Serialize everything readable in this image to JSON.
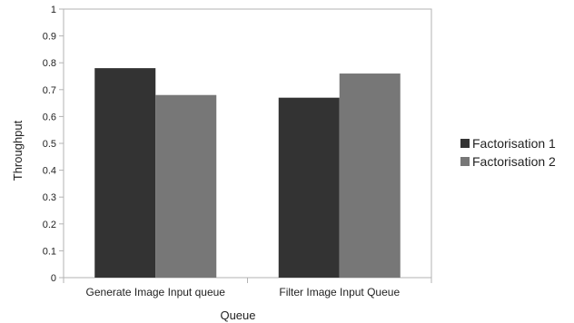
{
  "chart_data": {
    "type": "bar",
    "categories": [
      "Generate Image Input queue",
      "Filter Image Input Queue"
    ],
    "series": [
      {
        "name": "Factorisation 1",
        "values": [
          0.78,
          0.67
        ],
        "color": "#333333"
      },
      {
        "name": "Factorisation 2",
        "values": [
          0.68,
          0.76
        ],
        "color": "#777777"
      }
    ],
    "xlabel": "Queue",
    "ylabel": "Throughput",
    "ylim": [
      0,
      1
    ],
    "yticks": [
      "0",
      "0.1",
      "0.2",
      "0.3",
      "0.4",
      "0.5",
      "0.6",
      "0.7",
      "0.8",
      "0.9",
      "1"
    ],
    "grid": false,
    "legend_position": "right"
  }
}
